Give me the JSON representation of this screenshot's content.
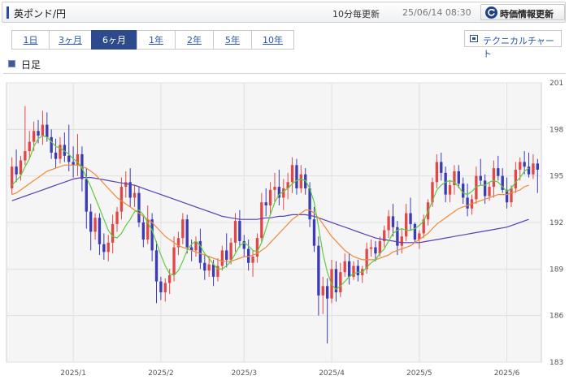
{
  "header": {
    "title": "英ポンド/円",
    "update_freq": "10分毎更新",
    "datetime": "25/06/14 08:30",
    "refresh_label": "時価情報更新"
  },
  "period_tabs": [
    {
      "label": "1日",
      "active": false
    },
    {
      "label": "3ヶ月",
      "active": false
    },
    {
      "label": "6ヶ月",
      "active": true
    },
    {
      "label": "1年",
      "active": false
    },
    {
      "label": "2年",
      "active": false
    },
    {
      "label": "5年",
      "active": false
    },
    {
      "label": "10年",
      "active": false
    }
  ],
  "technical_chart_label": "テクニカルチャート",
  "chart_legend": "日足",
  "colors": {
    "up": "#e04848",
    "down": "#3b3bb5",
    "ma_short": "#5ccc3e",
    "ma_mid": "#f08a3a",
    "ma_long": "#5b3fb5"
  },
  "chart_data": {
    "type": "candlestick",
    "y_ticks": [
      183,
      186,
      189,
      192,
      195,
      198,
      201
    ],
    "ylim": [
      183,
      201
    ],
    "x_ticks": [
      "2025/1",
      "2025/2",
      "2025/3",
      "2025/4",
      "2025/5",
      "2025/6"
    ],
    "x_tick_index": [
      14,
      34,
      53,
      73,
      93,
      113
    ],
    "candles_ohlc": [
      [
        194.2,
        196.2,
        193.8,
        195.6
      ],
      [
        195.6,
        196.7,
        194.6,
        195.1
      ],
      [
        195.1,
        196.3,
        194.7,
        196.0
      ],
      [
        196.0,
        199.5,
        195.7,
        196.6
      ],
      [
        196.6,
        197.9,
        196.1,
        197.2
      ],
      [
        197.2,
        198.5,
        196.6,
        197.9
      ],
      [
        197.9,
        198.6,
        197.1,
        197.6
      ],
      [
        197.6,
        199.2,
        197.0,
        198.3
      ],
      [
        198.3,
        199.1,
        197.2,
        197.5
      ],
      [
        197.5,
        198.0,
        196.1,
        196.5
      ],
      [
        196.5,
        197.4,
        195.5,
        196.1
      ],
      [
        196.1,
        197.5,
        195.8,
        197.0
      ],
      [
        197.0,
        197.8,
        195.9,
        196.3
      ],
      [
        196.3,
        198.3,
        195.3,
        195.9
      ],
      [
        195.9,
        196.9,
        194.9,
        195.7
      ],
      [
        195.7,
        197.7,
        195.0,
        196.4
      ],
      [
        196.4,
        196.9,
        194.0,
        194.8
      ],
      [
        194.8,
        195.5,
        191.6,
        192.7
      ],
      [
        192.7,
        193.2,
        190.2,
        191.4
      ],
      [
        191.4,
        192.6,
        190.9,
        192.3
      ],
      [
        192.3,
        192.6,
        189.9,
        190.6
      ],
      [
        190.6,
        191.3,
        189.6,
        190.1
      ],
      [
        190.1,
        191.2,
        189.5,
        190.7
      ],
      [
        190.7,
        192.5,
        190.0,
        191.9
      ],
      [
        191.9,
        193.0,
        191.4,
        192.7
      ],
      [
        192.7,
        194.9,
        192.2,
        194.3
      ],
      [
        194.3,
        195.3,
        193.6,
        194.6
      ],
      [
        194.6,
        195.5,
        193.0,
        193.6
      ],
      [
        193.6,
        194.4,
        193.0,
        193.9
      ],
      [
        193.9,
        194.3,
        191.7,
        192.0
      ],
      [
        192.0,
        192.4,
        190.4,
        190.9
      ],
      [
        190.9,
        193.1,
        190.6,
        192.2
      ],
      [
        192.2,
        192.6,
        189.5,
        190.2
      ],
      [
        190.2,
        190.8,
        186.8,
        188.2
      ],
      [
        188.2,
        188.5,
        187.0,
        187.5
      ],
      [
        187.5,
        188.4,
        186.9,
        188.1
      ],
      [
        188.1,
        189.0,
        187.4,
        188.6
      ],
      [
        188.6,
        191.1,
        188.2,
        190.4
      ],
      [
        190.4,
        191.4,
        189.9,
        191.0
      ],
      [
        191.0,
        192.6,
        190.6,
        192.2
      ],
      [
        192.2,
        192.5,
        190.0,
        190.4
      ],
      [
        190.4,
        190.9,
        189.5,
        190.2
      ],
      [
        190.2,
        191.1,
        189.8,
        190.8
      ],
      [
        190.8,
        191.6,
        189.0,
        189.4
      ],
      [
        189.4,
        189.9,
        188.3,
        188.9
      ],
      [
        188.9,
        189.8,
        188.5,
        189.3
      ],
      [
        189.3,
        189.6,
        187.9,
        188.5
      ],
      [
        188.5,
        189.7,
        188.2,
        189.2
      ],
      [
        189.2,
        190.5,
        188.9,
        190.2
      ],
      [
        190.2,
        191.3,
        189.1,
        189.6
      ],
      [
        189.6,
        191.0,
        189.3,
        190.7
      ],
      [
        190.7,
        192.6,
        190.1,
        192.1
      ],
      [
        192.1,
        192.8,
        190.4,
        190.8
      ],
      [
        190.8,
        191.2,
        189.8,
        190.3
      ],
      [
        190.3,
        190.9,
        188.9,
        189.4
      ],
      [
        189.4,
        190.2,
        188.5,
        189.8
      ],
      [
        189.8,
        191.3,
        189.4,
        191.0
      ],
      [
        191.0,
        193.9,
        190.7,
        193.3
      ],
      [
        193.3,
        194.2,
        192.4,
        193.1
      ],
      [
        193.1,
        194.6,
        192.5,
        194.1
      ],
      [
        194.1,
        195.2,
        193.3,
        194.3
      ],
      [
        194.3,
        195.4,
        193.1,
        193.6
      ],
      [
        193.6,
        194.8,
        192.8,
        194.2
      ],
      [
        194.2,
        195.2,
        193.5,
        194.6
      ],
      [
        194.6,
        196.2,
        193.9,
        195.7
      ],
      [
        195.7,
        196.1,
        193.8,
        194.2
      ],
      [
        194.2,
        195.7,
        193.9,
        195.1
      ],
      [
        195.1,
        195.5,
        193.8,
        194.2
      ],
      [
        194.2,
        194.6,
        191.7,
        192.2
      ],
      [
        192.2,
        193.0,
        190.1,
        190.5
      ],
      [
        190.5,
        191.1,
        186.0,
        187.3
      ],
      [
        187.3,
        188.5,
        186.1,
        187.9
      ],
      [
        187.9,
        188.4,
        184.2,
        187.1
      ],
      [
        187.1,
        189.6,
        186.8,
        189.0
      ],
      [
        189.0,
        189.5,
        186.9,
        187.5
      ],
      [
        187.5,
        189.4,
        187.2,
        188.8
      ],
      [
        188.8,
        190.0,
        188.5,
        189.5
      ],
      [
        189.5,
        190.0,
        188.0,
        188.5
      ],
      [
        188.5,
        189.5,
        188.3,
        189.2
      ],
      [
        189.2,
        189.6,
        188.2,
        188.6
      ],
      [
        188.6,
        189.2,
        188.1,
        189.0
      ],
      [
        189.0,
        190.7,
        188.7,
        190.3
      ],
      [
        190.3,
        190.9,
        189.8,
        190.4
      ],
      [
        190.4,
        190.8,
        189.5,
        190.0
      ],
      [
        190.0,
        191.1,
        189.8,
        190.8
      ],
      [
        190.8,
        191.8,
        190.4,
        191.5
      ],
      [
        191.5,
        192.8,
        191.0,
        192.4
      ],
      [
        192.4,
        193.2,
        191.1,
        191.7
      ],
      [
        191.7,
        192.1,
        189.9,
        190.5
      ],
      [
        190.5,
        191.6,
        190.0,
        191.1
      ],
      [
        191.1,
        193.2,
        190.8,
        192.6
      ],
      [
        192.6,
        193.6,
        191.5,
        191.9
      ],
      [
        191.9,
        192.0,
        190.7,
        190.9
      ],
      [
        190.9,
        191.5,
        190.3,
        191.3
      ],
      [
        191.3,
        192.5,
        191.0,
        192.2
      ],
      [
        192.2,
        193.5,
        191.8,
        193.3
      ],
      [
        193.3,
        194.9,
        193.0,
        194.6
      ],
      [
        194.6,
        196.4,
        194.2,
        195.9
      ],
      [
        195.9,
        196.5,
        194.7,
        195.2
      ],
      [
        195.2,
        195.6,
        193.3,
        193.8
      ],
      [
        193.8,
        194.7,
        193.3,
        194.4
      ],
      [
        194.4,
        195.7,
        193.8,
        195.3
      ],
      [
        195.3,
        195.7,
        194.2,
        194.5
      ],
      [
        194.5,
        194.9,
        193.2,
        193.6
      ],
      [
        193.6,
        194.5,
        192.4,
        192.9
      ],
      [
        192.9,
        193.8,
        192.5,
        193.5
      ],
      [
        193.5,
        195.6,
        193.2,
        195.0
      ],
      [
        195.0,
        196.1,
        194.4,
        194.7
      ],
      [
        194.7,
        195.1,
        193.2,
        193.7
      ],
      [
        193.7,
        194.6,
        193.4,
        194.3
      ],
      [
        194.3,
        196.0,
        193.6,
        195.5
      ],
      [
        195.5,
        196.3,
        194.7,
        195.0
      ],
      [
        195.0,
        195.5,
        193.9,
        194.1
      ],
      [
        194.1,
        194.9,
        192.9,
        193.3
      ],
      [
        193.3,
        194.4,
        193.0,
        194.2
      ],
      [
        194.2,
        195.9,
        193.9,
        195.4
      ],
      [
        195.4,
        196.2,
        194.7,
        195.9
      ],
      [
        195.9,
        196.6,
        195.1,
        195.6
      ],
      [
        195.6,
        196.5,
        194.9,
        195.1
      ],
      [
        195.1,
        196.4,
        194.8,
        195.8
      ],
      [
        195.8,
        196.1,
        193.9,
        195.4
      ]
    ],
    "ma_short": [
      194.4,
      194.7,
      195.0,
      195.6,
      196.1,
      196.9,
      197.4,
      197.6,
      197.5,
      197.2,
      196.9,
      196.8,
      196.6,
      196.4,
      196.1,
      195.9,
      195.5,
      194.9,
      194.3,
      193.6,
      192.9,
      192.2,
      191.5,
      191.1,
      191.0,
      191.3,
      191.8,
      192.2,
      192.7,
      192.8,
      192.5,
      192.0,
      191.5,
      190.7,
      189.9,
      189.2,
      188.7,
      188.6,
      188.9,
      189.5,
      190.2,
      190.6,
      190.8,
      190.5,
      190.0,
      189.7,
      189.3,
      189.0,
      189.0,
      189.2,
      189.5,
      190.0,
      190.5,
      190.7,
      190.5,
      190.2,
      190.1,
      190.7,
      191.6,
      192.5,
      193.3,
      193.8,
      194.0,
      194.2,
      194.5,
      194.7,
      194.8,
      194.7,
      194.2,
      193.3,
      191.7,
      190.0,
      188.8,
      188.0,
      187.7,
      187.9,
      188.2,
      188.5,
      188.7,
      188.8,
      188.8,
      189.1,
      189.4,
      189.6,
      190.0,
      190.3,
      190.8,
      191.3,
      191.5,
      191.6,
      191.5,
      191.5,
      191.6,
      191.8,
      192.1,
      192.7,
      193.4,
      194.1,
      194.4,
      194.6,
      194.7,
      194.6,
      194.3,
      193.9,
      193.8,
      194.0,
      194.3,
      194.4,
      194.4,
      194.6,
      194.7,
      194.6,
      194.3,
      194.0,
      194.2,
      194.6,
      194.9,
      195.3,
      195.5
    ],
    "ma_mid": [
      193.8,
      193.9,
      194.1,
      194.3,
      194.5,
      194.7,
      194.9,
      195.1,
      195.3,
      195.4,
      195.5,
      195.6,
      195.7,
      195.7,
      195.7,
      195.7,
      195.6,
      195.5,
      195.3,
      195.1,
      194.8,
      194.5,
      194.2,
      193.9,
      193.6,
      193.4,
      193.2,
      193.0,
      192.8,
      192.6,
      192.4,
      192.2,
      192.0,
      191.7,
      191.4,
      191.1,
      190.9,
      190.7,
      190.5,
      190.4,
      190.3,
      190.2,
      190.1,
      190.0,
      189.9,
      189.8,
      189.7,
      189.6,
      189.5,
      189.5,
      189.5,
      189.6,
      189.7,
      189.8,
      189.8,
      189.9,
      190.0,
      190.2,
      190.4,
      190.7,
      191.0,
      191.3,
      191.6,
      191.9,
      192.2,
      192.4,
      192.6,
      192.8,
      192.8,
      192.6,
      192.3,
      191.9,
      191.5,
      191.1,
      190.8,
      190.5,
      190.2,
      190.0,
      189.8,
      189.7,
      189.6,
      189.6,
      189.6,
      189.6,
      189.7,
      189.8,
      189.9,
      190.1,
      190.2,
      190.3,
      190.4,
      190.5,
      190.7,
      190.9,
      191.1,
      191.3,
      191.6,
      191.9,
      192.1,
      192.3,
      192.5,
      192.7,
      192.9,
      193.0,
      193.1,
      193.2,
      193.3,
      193.4,
      193.5,
      193.6,
      193.7,
      193.8,
      193.8,
      193.8,
      193.9,
      194.0,
      194.1,
      194.3,
      194.4
    ],
    "ma_long": [
      193.4,
      193.5,
      193.6,
      193.7,
      193.8,
      193.9,
      194.0,
      194.1,
      194.2,
      194.3,
      194.4,
      194.5,
      194.6,
      194.7,
      194.8,
      194.85,
      194.9,
      194.9,
      194.9,
      194.85,
      194.8,
      194.75,
      194.7,
      194.65,
      194.6,
      194.55,
      194.5,
      194.45,
      194.4,
      194.3,
      194.2,
      194.1,
      194.0,
      193.9,
      193.8,
      193.7,
      193.6,
      193.5,
      193.4,
      193.3,
      193.2,
      193.1,
      193.0,
      192.9,
      192.8,
      192.7,
      192.6,
      192.5,
      192.4,
      192.35,
      192.3,
      192.25,
      192.2,
      192.2,
      192.2,
      192.2,
      192.2,
      192.25,
      192.3,
      192.3,
      192.35,
      192.4,
      192.4,
      192.45,
      192.5,
      192.5,
      192.5,
      192.5,
      192.45,
      192.4,
      192.3,
      192.2,
      192.1,
      192.0,
      191.9,
      191.8,
      191.7,
      191.6,
      191.5,
      191.4,
      191.3,
      191.2,
      191.1,
      191.0,
      190.95,
      190.9,
      190.85,
      190.8,
      190.75,
      190.7,
      190.7,
      190.7,
      190.7,
      190.7,
      190.75,
      190.8,
      190.85,
      190.9,
      190.95,
      191.0,
      191.05,
      191.1,
      191.15,
      191.2,
      191.25,
      191.3,
      191.35,
      191.4,
      191.45,
      191.5,
      191.55,
      191.6,
      191.65,
      191.7,
      191.8,
      191.9,
      192.0,
      192.1,
      192.2
    ]
  }
}
